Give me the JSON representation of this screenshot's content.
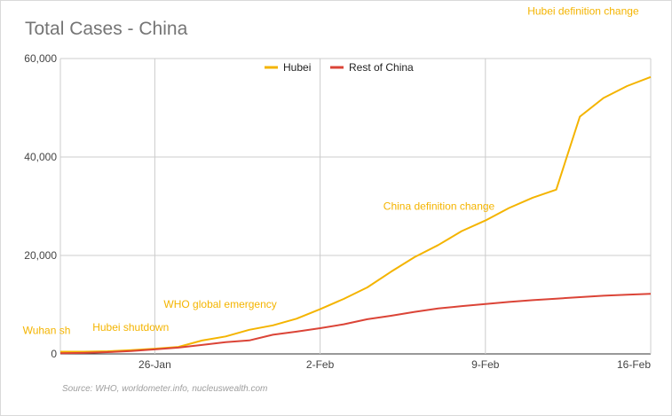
{
  "chart_data": {
    "type": "line",
    "title": "Total Cases - China",
    "xlabel": "",
    "ylabel": "",
    "x_ticks": [
      "26-Jan",
      "2-Feb",
      "9-Feb",
      "16-Feb"
    ],
    "y_ticks": [
      "0",
      "20,000",
      "40,000",
      "60,000"
    ],
    "ylim": [
      0,
      60000
    ],
    "dates": [
      "2020-01-22",
      "2020-01-23",
      "2020-01-24",
      "2020-01-25",
      "2020-01-26",
      "2020-01-27",
      "2020-01-28",
      "2020-01-29",
      "2020-01-30",
      "2020-01-31",
      "2020-02-01",
      "2020-02-02",
      "2020-02-03",
      "2020-02-04",
      "2020-02-05",
      "2020-02-06",
      "2020-02-07",
      "2020-02-08",
      "2020-02-09",
      "2020-02-10",
      "2020-02-11",
      "2020-02-12",
      "2020-02-13",
      "2020-02-14",
      "2020-02-15",
      "2020-02-16"
    ],
    "series": [
      {
        "name": "Hubei",
        "color": "#f4b400",
        "values": [
          444,
          444,
          549,
          761,
          1058,
          1423,
          2714,
          3554,
          4903,
          5806,
          7153,
          9074,
          11177,
          13522,
          16678,
          19665,
          22112,
          24953,
          27100,
          29631,
          31728,
          33366,
          48206,
          51986,
          54406,
          56249
        ]
      },
      {
        "name": "Rest of China",
        "color": "#db4437",
        "values": [
          127,
          195,
          368,
          580,
          918,
          1286,
          1811,
          2374,
          2745,
          3894,
          4531,
          5220,
          6025,
          7040,
          7755,
          8545,
          9218,
          9706,
          10133,
          10557,
          10912,
          11232,
          11539,
          11826,
          12024,
          12221
        ]
      }
    ],
    "annotations": [
      {
        "text": "Wuhan sh",
        "date": "2020-01-23",
        "series": "Hubei"
      },
      {
        "text": "Hubei shutdown",
        "date": "2020-01-24",
        "series": "Hubei"
      },
      {
        "text": "WHO global emergency",
        "date": "2020-01-31",
        "series": "Hubei"
      },
      {
        "text": "China definition change",
        "date": "2020-02-09",
        "series": "Hubei"
      },
      {
        "text": "Hubei definition change",
        "date": "2020-02-13",
        "series": "Hubei"
      }
    ],
    "legend_position": "top",
    "grid": true,
    "source": "Source: WHO, worldometer.info, nucleuswealth.com"
  }
}
